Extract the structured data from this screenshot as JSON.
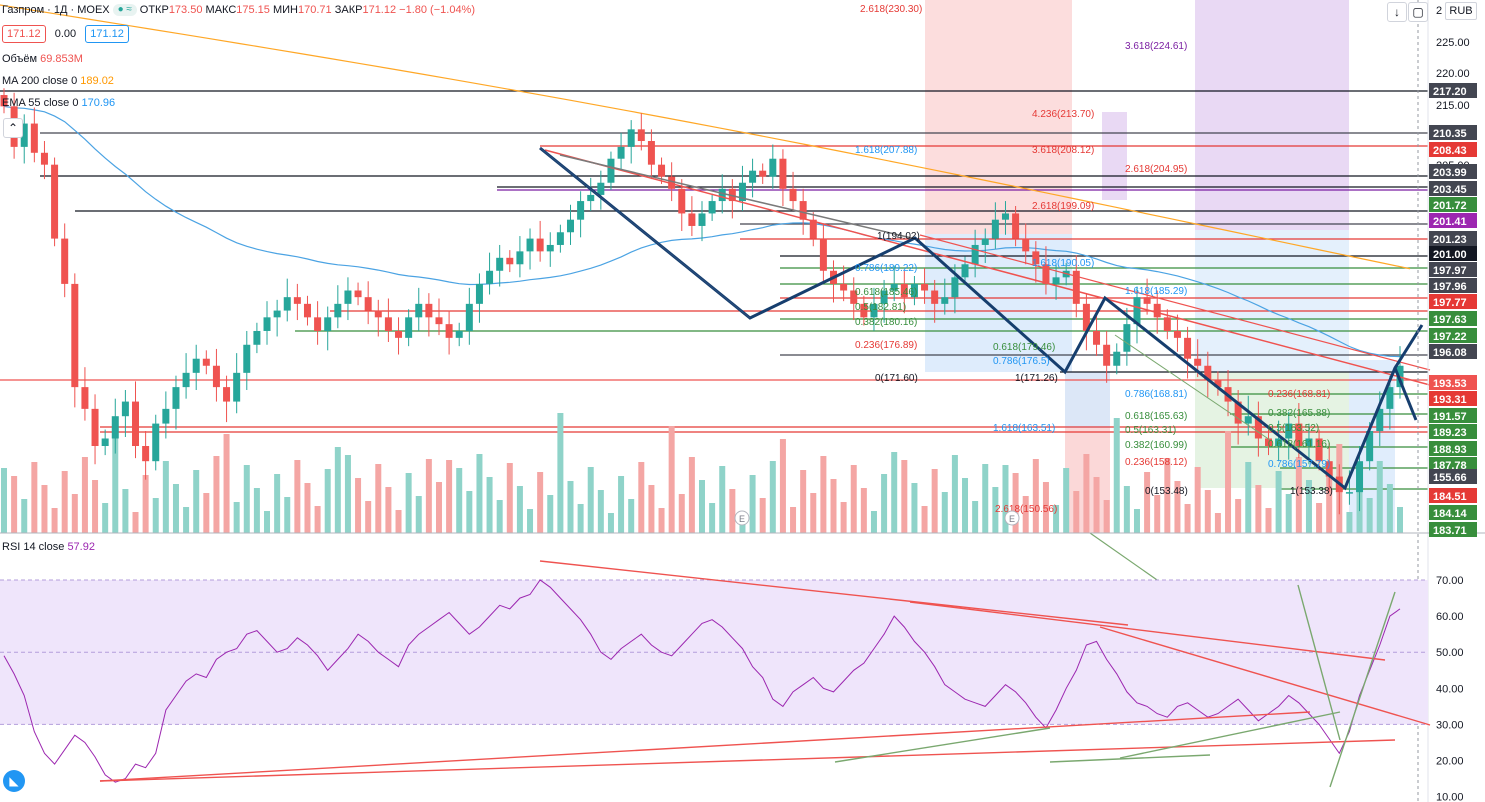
{
  "header": {
    "symbol": "Газпром · 1Д · MOEX",
    "ohlc": [
      {
        "k": "ОТКР",
        "v": "173.50"
      },
      {
        "k": "МАКС",
        "v": "175.15"
      },
      {
        "k": "МИН",
        "v": "170.71"
      },
      {
        "k": "ЗАКР",
        "v": "171.12"
      }
    ],
    "change": "−1.80 (−1.04%)",
    "price_sell": "171.12",
    "spread": "0.00",
    "price_buy": "171.12",
    "currency": "RUB"
  },
  "indicators": [
    {
      "name": "Объём",
      "value": "69.853M",
      "color": "#ef5350"
    },
    {
      "name": "MA 200 close 0",
      "value": "189.02",
      "color": "#ff9800"
    },
    {
      "name": "EMA 55 close 0",
      "value": "170.96",
      "color": "#2196f3"
    }
  ],
  "rsi_legend": {
    "name": "RSI 14 close",
    "value": "57.92",
    "color": "#9c27b0"
  },
  "colors": {
    "up": "#26a69a",
    "down": "#ef5350",
    "ma": "#ffa726",
    "ema": "#4ba3e3",
    "rsi": "#9c27b0",
    "rsi_band": "#efe5fb",
    "pattern": "#163e6e"
  },
  "chart_data": [
    {
      "type": "candlestick",
      "title": "Газпром · 1Д · MOEX",
      "currency": "RUB",
      "ylim": [
        153,
        230
      ],
      "y_scale": "log",
      "y_ticks": [
        225.0,
        220.0,
        215.0,
        205.0
      ],
      "price_labels": [
        {
          "value": "217.20",
          "color": "#434651"
        },
        {
          "value": "210.35",
          "color": "#434651"
        },
        {
          "value": "208.43",
          "color": "#e53935"
        },
        {
          "value": "203.99",
          "color": "#434651"
        },
        {
          "value": "203.45",
          "color": "#434651"
        },
        {
          "value": "201.72",
          "color": "#388e3c"
        },
        {
          "value": "201.41",
          "color": "#9c27b0"
        },
        {
          "value": "201.23",
          "color": "#434651"
        },
        {
          "value": "201.00",
          "color": "#131722"
        },
        {
          "value": "197.97",
          "color": "#434651"
        },
        {
          "value": "197.96",
          "color": "#434651"
        },
        {
          "value": "197.77",
          "color": "#e53935"
        },
        {
          "value": "197.63",
          "color": "#388e3c"
        },
        {
          "value": "197.22",
          "color": "#388e3c"
        },
        {
          "value": "196.08",
          "color": "#434651"
        },
        {
          "value": "193.53",
          "color": "#ef5350"
        },
        {
          "value": "193.31",
          "color": "#e53935"
        },
        {
          "value": "191.57",
          "color": "#388e3c"
        },
        {
          "value": "189.23",
          "color": "#388e3c"
        },
        {
          "value": "188.93",
          "color": "#388e3c"
        },
        {
          "value": "187.78",
          "color": "#388e3c"
        },
        {
          "value": "155.66",
          "color": "#434651"
        },
        {
          "value": "184.51",
          "color": "#e53935"
        },
        {
          "value": "184.14",
          "color": "#388e3c"
        },
        {
          "value": "183.71",
          "color": "#388e3c"
        }
      ],
      "fib_labels": [
        "2.618(230.30)",
        "3.618(224.61)",
        "4.236(213.70)",
        "1.618(207.88)",
        "3.618(208.12)",
        "2.618(204.95)",
        "1(194.02)",
        "2.618(199.09)",
        "0.786(189.22)",
        "1.618(190.05)",
        "0.618(185.46)",
        "0.5(182.81)",
        "0.382(180.16)",
        "1.618(185.29)",
        "0.236(176.89)",
        "0.618(179.46)",
        "0.786(176.5)",
        "0(171.60)",
        "1(171.26)",
        "0.786(168.81)",
        "0.618(165.63)",
        "0.5(163.31)",
        "0.382(160.99)",
        "1.618(163.51)",
        "0.236(158.12)",
        "0(153.48)",
        "2.618(150.56)",
        "1(153.38)",
        "0.236(168.81)",
        "0.382(165.88)",
        "0.5(163.52)",
        "0.618(161.16)",
        "0.786(157.79)"
      ],
      "series": [
        {
          "name": "Газпром",
          "closes": [
            212,
            205,
            209,
            204,
            202,
            190,
            183,
            168,
            165,
            160,
            161,
            164,
            166,
            160,
            158,
            163,
            165,
            168,
            170,
            172,
            171,
            168,
            166,
            170,
            174,
            176,
            178,
            179,
            181,
            180,
            178,
            176,
            178,
            180,
            182,
            181,
            179,
            178,
            176,
            175,
            178,
            180,
            178,
            177,
            175,
            176,
            180,
            183,
            185,
            187,
            186,
            188,
            190,
            188,
            189,
            191,
            193,
            196,
            197,
            199,
            203,
            205,
            208,
            206,
            202,
            200,
            198,
            194,
            192,
            194,
            196,
            198,
            196,
            199,
            201,
            200,
            203,
            198,
            196,
            193,
            190,
            185,
            183,
            182,
            180,
            178,
            180,
            182,
            183,
            181,
            183,
            182,
            180,
            181,
            184,
            186,
            189,
            190,
            193,
            194,
            190,
            188,
            186,
            183,
            184,
            185,
            180,
            176,
            174,
            171,
            173,
            177,
            181,
            180,
            178,
            176,
            175,
            172,
            171,
            169,
            168,
            166,
            163,
            164,
            161,
            160,
            161,
            163,
            160,
            161,
            158,
            156,
            154,
            154,
            158,
            162,
            165,
            168,
            171
          ]
        },
        {
          "name": "MA 200",
          "value": "189.02"
        },
        {
          "name": "EMA 55",
          "value": "170.96"
        }
      ]
    },
    {
      "type": "line",
      "title": "RSI 14 close",
      "ylim": [
        10,
        75
      ],
      "y_ticks": [
        70.0,
        60.0,
        50.0,
        40.0,
        30.0,
        20.0,
        10.0
      ],
      "band": [
        30,
        70
      ],
      "series": [
        {
          "name": "RSI 14 close",
          "values": [
            49,
            44,
            38,
            28,
            22,
            19,
            23,
            27,
            25,
            21,
            16,
            14,
            15,
            19,
            18,
            22,
            34,
            38,
            42,
            44,
            43,
            48,
            50,
            51,
            55,
            56,
            53,
            50,
            51,
            54,
            52,
            49,
            45,
            48,
            51,
            55,
            53,
            50,
            48,
            46,
            52,
            55,
            57,
            59,
            61,
            58,
            55,
            57,
            60,
            63,
            62,
            65,
            66,
            70,
            68,
            65,
            62,
            59,
            55,
            50,
            48,
            51,
            53,
            55,
            52,
            50,
            49,
            52,
            55,
            58,
            59,
            57,
            54,
            51,
            46,
            43,
            37,
            35,
            39,
            41,
            43,
            40,
            39,
            42,
            45,
            47,
            51,
            55,
            60,
            57,
            53,
            50,
            46,
            41,
            39,
            37,
            36,
            35,
            38,
            41,
            39,
            36,
            32,
            29,
            34,
            40,
            45,
            52,
            53,
            48,
            44,
            39,
            36,
            35,
            33,
            32,
            35,
            36,
            34,
            32,
            33,
            35,
            37,
            34,
            31,
            33,
            35,
            38,
            36,
            33,
            30,
            26,
            22,
            28,
            38,
            45,
            52,
            60,
            62
          ]
        }
      ]
    }
  ]
}
